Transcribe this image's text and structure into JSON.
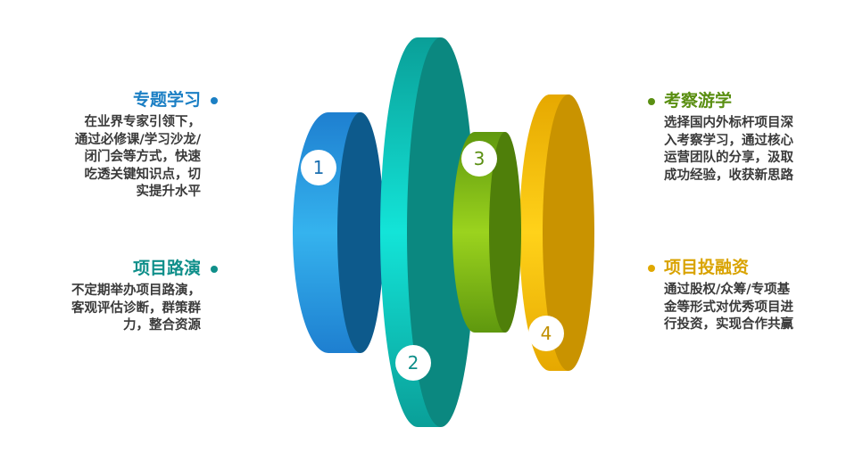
{
  "segments": [
    {
      "number": "1",
      "title": "专题学习",
      "lines": [
        "在业界专家引领下，",
        "通过必修课/学习沙龙/",
        "闭门会等方式，快速",
        "吃透关键知识点，切",
        "实提升水平"
      ]
    },
    {
      "number": "2",
      "title": "项目路演",
      "lines": [
        "不定期举办项目路演，",
        "客观评估诊断，群策群",
        "力，整合资源"
      ]
    },
    {
      "number": "3",
      "title": "考察游学",
      "lines": [
        "选择国内外标杆项目深",
        "入考察学习，通过核心",
        "运营团队的分享，汲取",
        "成功经验，收获新思路"
      ]
    },
    {
      "number": "4",
      "title": "项目投融资",
      "lines": [
        "通过股权/众筹/专项基",
        "金等形式对优秀项目进",
        "行投资，实现合作共赢"
      ]
    }
  ],
  "colors": {
    "blue": "#1a8fd8",
    "teal": "#0aa7a0",
    "green": "#6aa50f",
    "gold": "#f2b705",
    "title_blue": "#1b7fc4",
    "title_teal": "#0f8f8a",
    "title_green": "#5a8f12",
    "title_gold": "#d9a300"
  }
}
